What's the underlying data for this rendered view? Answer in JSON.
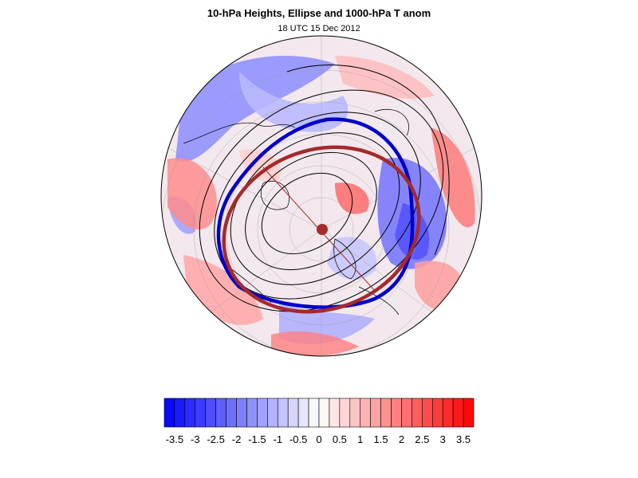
{
  "title": "10-hPa Heights, Ellipse and 1000-hPa T anom",
  "subtitle": "18 UTC 15 Dec 2012",
  "colors": {
    "cold_max": "#0000ff",
    "warm_max": "#ff0000",
    "height_contour": "#000000",
    "ellipse": "#a52a2a",
    "vortex_edge": "#0000cc",
    "graticule": "#999999"
  },
  "map": {
    "projection": "north-polar-stereographic",
    "field": "1000-hPa temperature anomaly (shaded)",
    "contours": "10-hPa geopotential height",
    "overlays": [
      "ellipse-fit",
      "vortex-edge-contour",
      "ellipse-center-dot",
      "ellipse-major-axis"
    ]
  },
  "colorbar": {
    "levels": [
      -3.75,
      -3.5,
      -3.25,
      -3,
      -2.75,
      -2.5,
      -2.25,
      -2,
      -1.75,
      -1.5,
      -1.25,
      -1,
      -0.75,
      -0.5,
      -0.25,
      0,
      0.25,
      0.5,
      0.75,
      1,
      1.25,
      1.5,
      1.75,
      2,
      2.25,
      2.5,
      2.75,
      3,
      3.25,
      3.5,
      3.75
    ],
    "labels": [
      "-3.5",
      "-3",
      "-2.5",
      "-2",
      "-1.5",
      "-1",
      "-0.5",
      "0",
      "0.5",
      "1",
      "1.5",
      "2",
      "2.5",
      "3",
      "3.5"
    ]
  }
}
